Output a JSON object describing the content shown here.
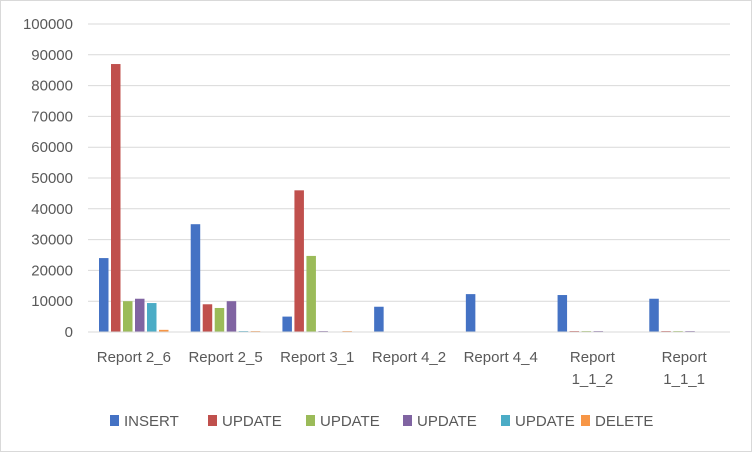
{
  "chart_data": {
    "type": "bar",
    "title": "",
    "xlabel": "",
    "ylabel": "",
    "ylim": [
      0,
      100000
    ],
    "yticks": [
      0,
      10000,
      20000,
      30000,
      40000,
      50000,
      60000,
      70000,
      80000,
      90000,
      100000
    ],
    "grid": true,
    "legend_position": "bottom",
    "categories": [
      [
        "Report 2_6"
      ],
      [
        "Report 2_5"
      ],
      [
        "Report 3_1"
      ],
      [
        "Report 4_2"
      ],
      [
        "Report 4_4"
      ],
      [
        "Report",
        "1_1_2"
      ],
      [
        "Report",
        "1_1_1"
      ]
    ],
    "series": [
      {
        "name": "INSERT",
        "color": "#4472c4",
        "values": [
          24000,
          35000,
          5000,
          8200,
          12300,
          12000,
          10800
        ]
      },
      {
        "name": "UPDATE",
        "color": "#c0504d",
        "values": [
          87000,
          9000,
          46000,
          0,
          0,
          300,
          300
        ]
      },
      {
        "name": "UPDATE",
        "color": "#9bbb59",
        "values": [
          10000,
          7800,
          24700,
          0,
          0,
          300,
          300
        ]
      },
      {
        "name": "UPDATE",
        "color": "#8064a2",
        "values": [
          10800,
          10000,
          300,
          0,
          0,
          300,
          300
        ]
      },
      {
        "name": "UPDATE",
        "color": "#4bacc6",
        "values": [
          9400,
          300,
          0,
          0,
          0,
          0,
          0
        ]
      },
      {
        "name": "DELETE",
        "color": "#f79646",
        "values": [
          700,
          300,
          300,
          0,
          0,
          0,
          0
        ]
      }
    ]
  }
}
